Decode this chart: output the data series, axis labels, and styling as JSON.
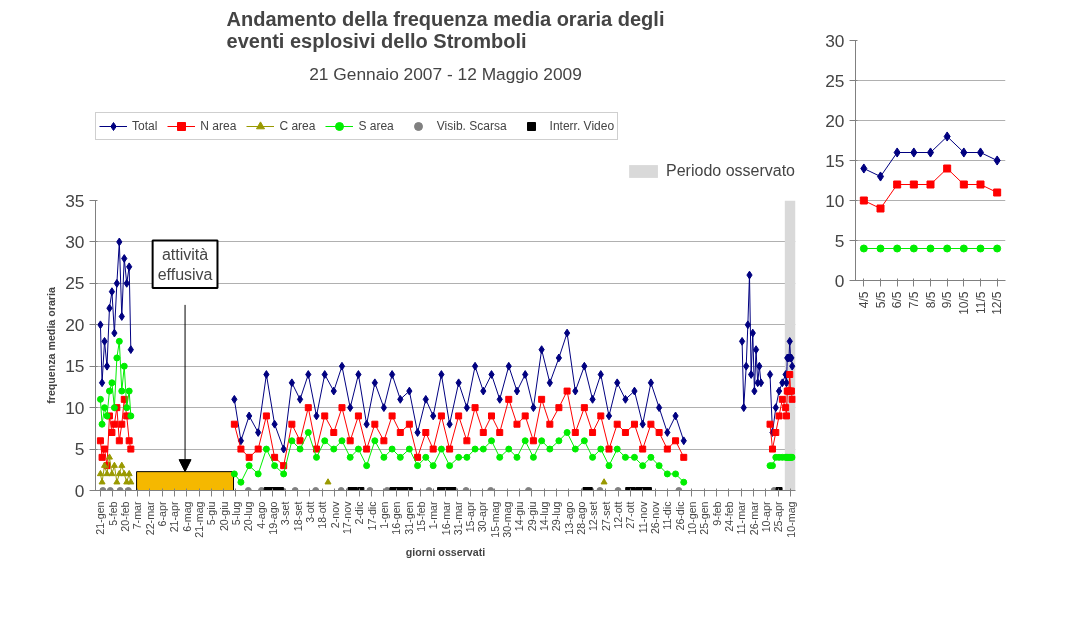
{
  "chart_data": [
    {
      "type": "line",
      "title": "Andamento della frequenza media oraria degli eventi esplosivi dello Stromboli",
      "subtitle": "21 Gennaio 2007 - 12 Maggio 2009",
      "xlabel": "giorni osservati",
      "ylabel": "frequenza media oraria",
      "x": [
        "2007-01-21",
        "2007-01-23",
        "2007-01-26",
        "2007-01-29",
        "2007-02-01",
        "2007-02-04",
        "2007-02-07",
        "2007-02-10",
        "2007-02-13",
        "2007-02-16",
        "2007-02-19",
        "2007-02-22",
        "2007-02-25",
        "2007-02-27",
        "2007-04-15",
        "2007-07-03",
        "2007-07-11",
        "2007-07-21",
        "2007-08-01",
        "2007-08-11",
        "2007-08-21",
        "2007-09-01",
        "2007-09-11",
        "2007-09-21",
        "2007-10-01",
        "2007-10-11",
        "2007-10-21",
        "2007-11-01",
        "2007-11-11",
        "2007-11-21",
        "2007-12-01",
        "2007-12-11",
        "2007-12-21",
        "2008-01-01",
        "2008-01-11",
        "2008-01-21",
        "2008-02-01",
        "2008-02-11",
        "2008-02-21",
        "2008-03-01",
        "2008-03-11",
        "2008-03-21",
        "2008-04-01",
        "2008-04-11",
        "2008-04-21",
        "2008-05-01",
        "2008-05-11",
        "2008-05-21",
        "2008-06-01",
        "2008-06-11",
        "2008-06-21",
        "2008-07-01",
        "2008-07-11",
        "2008-07-21",
        "2008-08-01",
        "2008-08-11",
        "2008-08-21",
        "2008-09-01",
        "2008-09-11",
        "2008-09-21",
        "2008-10-01",
        "2008-10-11",
        "2008-10-21",
        "2008-11-01",
        "2008-11-11",
        "2008-11-21",
        "2008-12-01",
        "2008-12-11",
        "2008-12-21",
        "2008-12-31",
        "2009-02-01",
        "2009-03-12",
        "2009-03-14",
        "2009-03-17",
        "2009-03-19",
        "2009-03-21",
        "2009-03-23",
        "2009-03-25",
        "2009-03-27",
        "2009-03-29",
        "2009-03-31",
        "2009-04-02",
        "2009-04-04",
        "2009-04-10",
        "2009-04-15",
        "2009-04-18",
        "2009-04-22",
        "2009-04-26",
        "2009-04-30",
        "2009-05-04",
        "2009-05-05",
        "2009-05-06",
        "2009-05-07",
        "2009-05-08",
        "2009-05-09",
        "2009-05-10",
        "2009-05-11",
        "2009-05-12"
      ],
      "series": [
        {
          "name": "Total",
          "color": "#000080",
          "marker": "diamond",
          "values": [
            20,
            13,
            18,
            15,
            22,
            24,
            19,
            25,
            30,
            21,
            28,
            25,
            27,
            17,
            null,
            11,
            6,
            9,
            7,
            14,
            8,
            5,
            13,
            11,
            14,
            9,
            14,
            12,
            15,
            10,
            14,
            8,
            13,
            10,
            14,
            11,
            12,
            7,
            11,
            9,
            14,
            8,
            13,
            10,
            15,
            12,
            14,
            11,
            15,
            12,
            14,
            10,
            17,
            13,
            16,
            19,
            12,
            15,
            11,
            14,
            9,
            13,
            11,
            12,
            8,
            13,
            10,
            7,
            9,
            6,
            null,
            18,
            10,
            15,
            20,
            26,
            14,
            19,
            12,
            17,
            13,
            15,
            13,
            null,
            14,
            7,
            10,
            12,
            13,
            14,
            13,
            16,
            16,
            16,
            18,
            16,
            16,
            15
          ]
        },
        {
          "name": "N area",
          "color": "#ff0000",
          "marker": "square",
          "values": [
            6,
            4,
            5,
            3,
            9,
            7,
            8,
            10,
            6,
            8,
            11,
            9,
            6,
            5,
            null,
            8,
            5,
            4,
            5,
            9,
            4,
            3,
            8,
            6,
            10,
            5,
            9,
            7,
            10,
            6,
            9,
            5,
            8,
            6,
            9,
            7,
            8,
            4,
            7,
            5,
            9,
            5,
            9,
            6,
            10,
            7,
            9,
            7,
            11,
            8,
            9,
            6,
            11,
            8,
            10,
            12,
            7,
            10,
            7,
            9,
            5,
            8,
            7,
            8,
            5,
            8,
            7,
            5,
            6,
            4,
            null,
            null,
            null,
            null,
            null,
            null,
            null,
            null,
            null,
            null,
            null,
            null,
            null,
            null,
            8,
            5,
            7,
            9,
            11,
            10,
            9,
            12,
            12,
            12,
            14,
            12,
            12,
            11
          ]
        },
        {
          "name": "C area",
          "color": "#999900",
          "marker": "triangle",
          "x": [
            "2007-01-21",
            "2007-01-23",
            "2007-01-26",
            "2007-01-29",
            "2007-02-01",
            "2007-02-04",
            "2007-02-07",
            "2007-02-10",
            "2007-02-13",
            "2007-02-16",
            "2007-02-19",
            "2007-02-22",
            "2007-02-25",
            "2007-02-27",
            "2007-06-01",
            "2007-10-25",
            "2008-06-01",
            "2008-09-25"
          ],
          "values": [
            2,
            1,
            3,
            2,
            4,
            2,
            3,
            1,
            2,
            3,
            2,
            1,
            2,
            1,
            null,
            1,
            null,
            1
          ]
        },
        {
          "name": "S area",
          "color": "#00ee00",
          "marker": "circle",
          "values": [
            11,
            8,
            10,
            9,
            12,
            13,
            10,
            16,
            18,
            12,
            15,
            10,
            12,
            9,
            null,
            2,
            1,
            3,
            2,
            5,
            3,
            2,
            6,
            5,
            7,
            4,
            6,
            5,
            6,
            4,
            5,
            3,
            6,
            4,
            5,
            4,
            5,
            3,
            4,
            3,
            5,
            3,
            4,
            4,
            5,
            5,
            6,
            4,
            5,
            4,
            6,
            4,
            6,
            5,
            6,
            7,
            5,
            6,
            4,
            5,
            3,
            5,
            4,
            4,
            3,
            4,
            3,
            2,
            2,
            1,
            null,
            null,
            null,
            null,
            null,
            null,
            null,
            null,
            null,
            null,
            null,
            null,
            null,
            null,
            3,
            3,
            4,
            4,
            4,
            4,
            4,
            4,
            4,
            4,
            4,
            4,
            4,
            4
          ]
        },
        {
          "name": "Visib. Scarsa",
          "type": "scatter",
          "color": "#808080",
          "marker": "circle",
          "x": [
            "2007-01-24",
            "2007-02-02",
            "2007-02-14",
            "2007-02-24",
            "2007-07-20",
            "2007-08-05",
            "2007-08-30",
            "2007-09-15",
            "2007-10-10",
            "2007-11-10",
            "2007-12-15",
            "2008-01-05",
            "2008-02-25",
            "2008-04-10",
            "2008-05-10",
            "2008-06-25",
            "2008-09-20",
            "2008-10-12",
            "2008-12-25",
            "2009-04-20"
          ],
          "values": [
            0,
            0,
            0,
            0,
            0,
            0,
            0,
            0,
            0,
            0,
            0,
            0,
            0,
            0,
            0,
            0,
            0,
            0,
            0,
            0
          ]
        },
        {
          "name": "Interr. Video",
          "type": "scatter",
          "color": "#000000",
          "marker": "square",
          "x": [
            "2007-08-12",
            "2007-08-16",
            "2007-08-20",
            "2007-08-24",
            "2007-08-28",
            "2007-11-22",
            "2007-11-26",
            "2007-12-04",
            "2008-01-12",
            "2008-01-16",
            "2008-01-20",
            "2008-01-24",
            "2008-01-28",
            "2008-02-01",
            "2008-03-10",
            "2008-03-15",
            "2008-03-20",
            "2008-03-25",
            "2008-09-03",
            "2008-09-07",
            "2008-10-25",
            "2008-10-29",
            "2008-11-06",
            "2008-11-10",
            "2008-11-14",
            "2008-11-18",
            "2009-04-26"
          ],
          "values": [
            0,
            0,
            0,
            0,
            0,
            0,
            0,
            0,
            0,
            0,
            0,
            0,
            0,
            0,
            0,
            0,
            0,
            0,
            0,
            0,
            0,
            0,
            0,
            0,
            0,
            0,
            0
          ]
        }
      ],
      "xlim": [
        "2007-01-15",
        "2009-05-16"
      ],
      "ylim": [
        0,
        35
      ],
      "yticks": [
        0,
        5,
        10,
        15,
        20,
        25,
        30,
        35
      ],
      "xticks": [
        {
          "value": "2007-01-21",
          "label": "21-gen"
        },
        {
          "value": "2007-02-05",
          "label": "5-feb"
        },
        {
          "value": "2007-02-20",
          "label": "20-feb"
        },
        {
          "value": "2007-03-07",
          "label": "7-mar"
        },
        {
          "value": "2007-03-22",
          "label": "22-mar"
        },
        {
          "value": "2007-04-06",
          "label": "6-apr"
        },
        {
          "value": "2007-04-21",
          "label": "21-apr"
        },
        {
          "value": "2007-05-06",
          "label": "6-mag"
        },
        {
          "value": "2007-05-21",
          "label": "21-mag"
        },
        {
          "value": "2007-06-05",
          "label": "5-giu"
        },
        {
          "value": "2007-06-20",
          "label": "20-giu"
        },
        {
          "value": "2007-07-05",
          "label": "5-lug"
        },
        {
          "value": "2007-07-20",
          "label": "20-lug"
        },
        {
          "value": "2007-08-04",
          "label": "4-ago"
        },
        {
          "value": "2007-08-19",
          "label": "19-ago"
        },
        {
          "value": "2007-09-03",
          "label": "3-set"
        },
        {
          "value": "2007-09-18",
          "label": "18-set"
        },
        {
          "value": "2007-10-03",
          "label": "3-ott"
        },
        {
          "value": "2007-10-18",
          "label": "18-ott"
        },
        {
          "value": "2007-11-02",
          "label": "2-nov"
        },
        {
          "value": "2007-11-17",
          "label": "17-nov"
        },
        {
          "value": "2007-12-02",
          "label": "2-dic"
        },
        {
          "value": "2007-12-17",
          "label": "17-dic"
        },
        {
          "value": "2008-01-01",
          "label": "1-gen"
        },
        {
          "value": "2008-01-16",
          "label": "16-gen"
        },
        {
          "value": "2008-01-31",
          "label": "31-gen"
        },
        {
          "value": "2008-02-15",
          "label": "15-feb"
        },
        {
          "value": "2008-03-01",
          "label": "1-mar"
        },
        {
          "value": "2008-03-16",
          "label": "16-mar"
        },
        {
          "value": "2008-03-31",
          "label": "31-mar"
        },
        {
          "value": "2008-04-15",
          "label": "15-apr"
        },
        {
          "value": "2008-04-30",
          "label": "30-apr"
        },
        {
          "value": "2008-05-15",
          "label": "15-mag"
        },
        {
          "value": "2008-05-30",
          "label": "30-mag"
        },
        {
          "value": "2008-06-14",
          "label": "14-giu"
        },
        {
          "value": "2008-06-29",
          "label": "29-giu"
        },
        {
          "value": "2008-07-14",
          "label": "14-lug"
        },
        {
          "value": "2008-07-29",
          "label": "29-lug"
        },
        {
          "value": "2008-08-13",
          "label": "13-ago"
        },
        {
          "value": "2008-08-28",
          "label": "28-ago"
        },
        {
          "value": "2008-09-12",
          "label": "12-set"
        },
        {
          "value": "2008-09-27",
          "label": "27-set"
        },
        {
          "value": "2008-10-12",
          "label": "12-ott"
        },
        {
          "value": "2008-10-27",
          "label": "27-ott"
        },
        {
          "value": "2008-11-11",
          "label": "11-nov"
        },
        {
          "value": "2008-11-26",
          "label": "26-nov"
        },
        {
          "value": "2008-12-11",
          "label": "11-dic"
        },
        {
          "value": "2008-12-26",
          "label": "26-dic"
        },
        {
          "value": "2009-01-10",
          "label": "10-gen"
        },
        {
          "value": "2009-01-25",
          "label": "25-gen"
        },
        {
          "value": "2009-02-09",
          "label": "9-feb"
        },
        {
          "value": "2009-02-24",
          "label": "24-feb"
        },
        {
          "value": "2009-03-11",
          "label": "11-mar"
        },
        {
          "value": "2009-03-26",
          "label": "26-mar"
        },
        {
          "value": "2009-04-10",
          "label": "10-apr"
        },
        {
          "value": "2009-04-25",
          "label": "25-apr"
        },
        {
          "value": "2009-05-10",
          "label": "10-mag"
        }
      ],
      "bands": [
        {
          "axis": "x",
          "from": "2007-03-06",
          "to": "2007-07-02",
          "color": "#f5b800"
        },
        {
          "axis": "x",
          "from": "2009-05-03",
          "to": "2009-05-16",
          "label": "Periodo osservato",
          "color": "#d9d9d9"
        }
      ],
      "annotations": [
        "attività effusiva"
      ],
      "grid": "y",
      "legend": "top"
    },
    {
      "type": "line",
      "categories": [
        "4/5",
        "5/5",
        "6/5",
        "7/5",
        "8/5",
        "9/5",
        "10/5",
        "11/5",
        "12/5"
      ],
      "series": [
        {
          "color": "#000080",
          "marker": "diamond",
          "values": [
            14,
            13,
            16,
            16,
            16,
            18,
            16,
            16,
            15
          ]
        },
        {
          "color": "#ff0000",
          "marker": "square",
          "values": [
            10,
            9,
            12,
            12,
            12,
            14,
            12,
            12,
            11
          ]
        },
        {
          "color": "#00ee00",
          "marker": "circle",
          "values": [
            4,
            4,
            4,
            4,
            4,
            4,
            4,
            4,
            4
          ]
        }
      ],
      "ylim": [
        0,
        30
      ],
      "yticks": [
        0,
        5,
        10,
        15,
        20,
        25,
        30
      ],
      "grid": "y"
    }
  ]
}
